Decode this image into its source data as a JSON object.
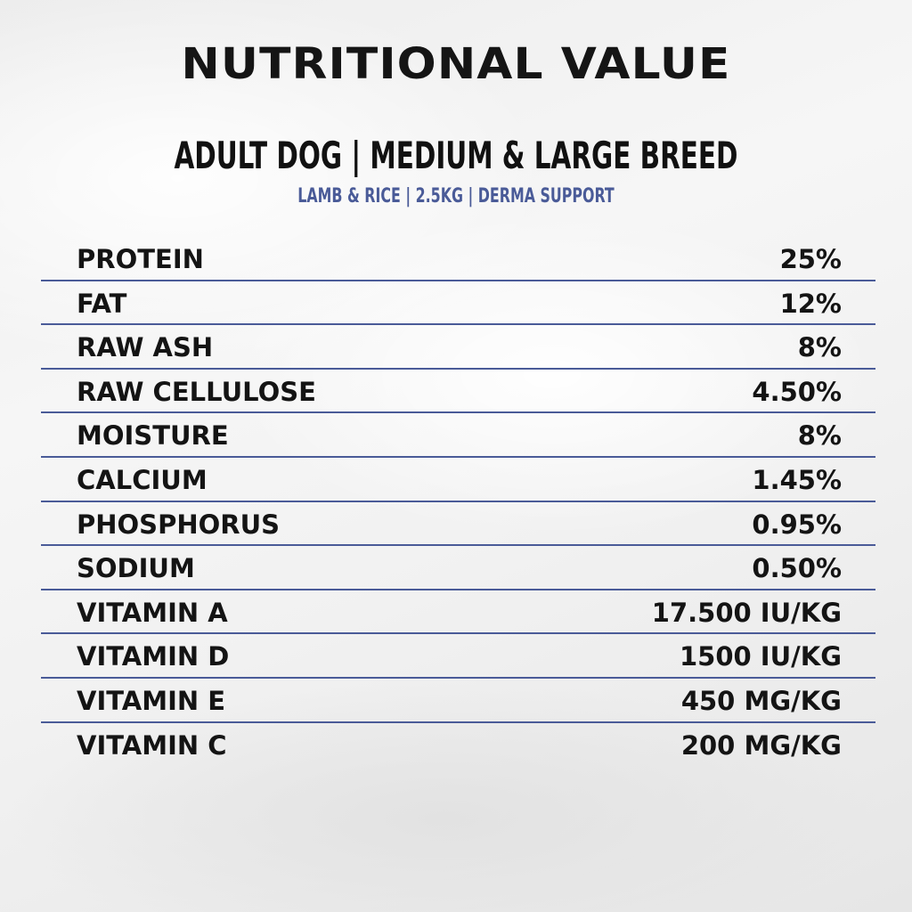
{
  "header": {
    "title": "NUTRITIONAL VALUE",
    "subtitle": "ADULT DOG | MEDIUM & LARGE BREED",
    "tagline": "LAMB & RICE | 2.5KG | DERMA SUPPORT"
  },
  "colors": {
    "accent": "#4a5b98",
    "text": "#141414"
  },
  "nutrients": [
    {
      "label": "PROTEIN",
      "value": "25%"
    },
    {
      "label": "FAT",
      "value": "12%"
    },
    {
      "label": "RAW ASH",
      "value": "8%"
    },
    {
      "label": "RAW CELLULOSE",
      "value": "4.50%"
    },
    {
      "label": "MOISTURE",
      "value": "8%"
    },
    {
      "label": "CALCIUM",
      "value": "1.45%"
    },
    {
      "label": "PHOSPHORUS",
      "value": "0.95%"
    },
    {
      "label": "SODIUM",
      "value": "0.50%"
    },
    {
      "label": "VITAMIN A",
      "value": "17.500 IU/KG"
    },
    {
      "label": "VITAMIN D",
      "value": "1500 IU/KG"
    },
    {
      "label": "VITAMIN E",
      "value": "450 MG/KG"
    },
    {
      "label": "VITAMIN C",
      "value": "200 MG/KG"
    }
  ]
}
